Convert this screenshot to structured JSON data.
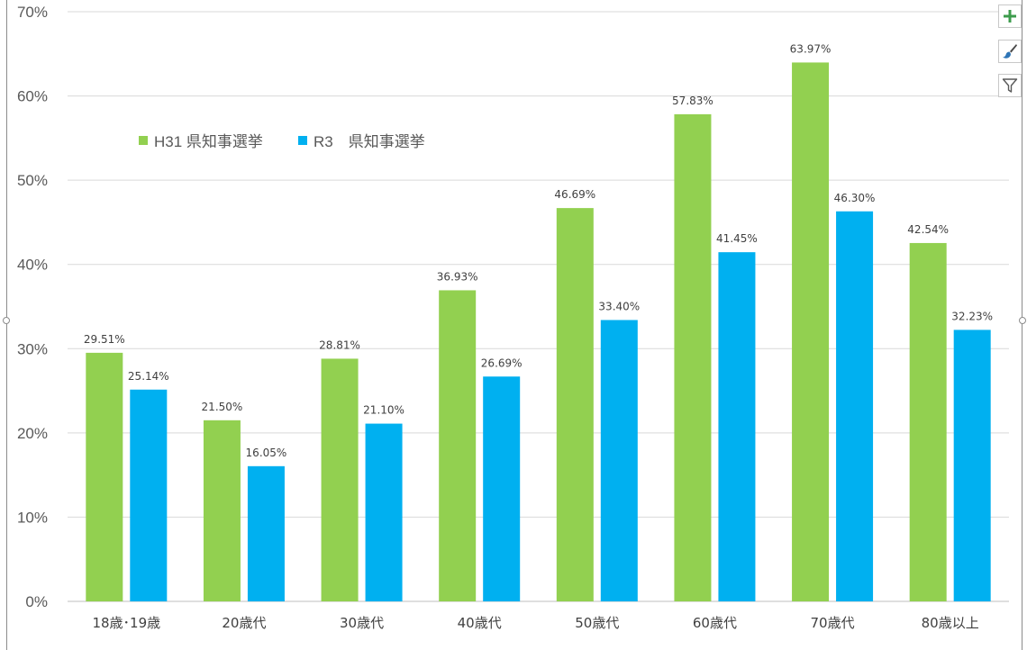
{
  "chart_data": {
    "type": "bar",
    "categories": [
      "18歳･19歳",
      "20歳代",
      "30歳代",
      "40歳代",
      "50歳代",
      "60歳代",
      "70歳代",
      "80歳以上"
    ],
    "series": [
      {
        "name": "H31 県知事選挙",
        "color": "#92d050",
        "values": [
          29.51,
          21.5,
          28.81,
          36.93,
          46.69,
          57.83,
          63.97,
          42.54
        ],
        "labels": [
          "29.51%",
          "21.50%",
          "28.81%",
          "36.93%",
          "46.69%",
          "57.83%",
          "63.97%",
          "42.54%"
        ]
      },
      {
        "name": "R3　県知事選挙",
        "color": "#00b0f0",
        "values": [
          25.14,
          16.05,
          21.1,
          26.69,
          33.4,
          41.45,
          46.3,
          32.23
        ],
        "labels": [
          "25.14%",
          "16.05%",
          "21.10%",
          "26.69%",
          "33.40%",
          "41.45%",
          "46.30%",
          "32.23%"
        ]
      }
    ],
    "y_ticks": [
      "0%",
      "10%",
      "20%",
      "30%",
      "40%",
      "50%",
      "60%",
      "70%"
    ],
    "ylim": [
      0,
      70
    ],
    "grid": true,
    "legend_position": "top-left",
    "title": "",
    "xlabel": "",
    "ylabel": ""
  },
  "toolbar": {
    "add_icon": "plus-icon",
    "style_icon": "brush-icon",
    "filter_icon": "filter-icon"
  }
}
